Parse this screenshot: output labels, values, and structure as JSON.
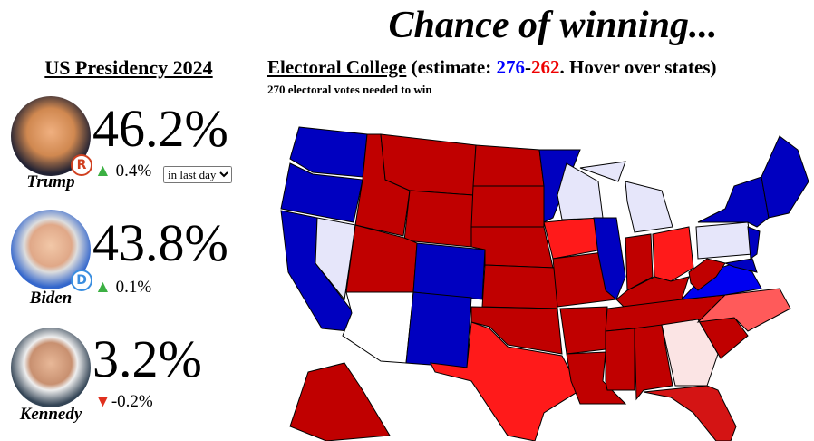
{
  "header": {
    "title": "Chance of winning..."
  },
  "left_panel": {
    "title": "US Presidency 2024",
    "candidates": [
      {
        "name": "Trump",
        "party": "R",
        "percent": "46.2%",
        "change": "0.4%",
        "period": "in last day"
      },
      {
        "name": "Biden",
        "party": "D",
        "percent": "43.8%",
        "change": "0.1%"
      },
      {
        "name": "Kennedy",
        "percent": "3.2%",
        "change": "-0.2%"
      }
    ]
  },
  "map_panel": {
    "title": "Electoral College",
    "estimate_prefix": "(estimate: ",
    "dem_votes": "276",
    "separator": "-",
    "rep_votes": "262",
    "estimate_suffix": ". Hover over states)",
    "subtitle": "270 electoral votes needed to win"
  }
}
